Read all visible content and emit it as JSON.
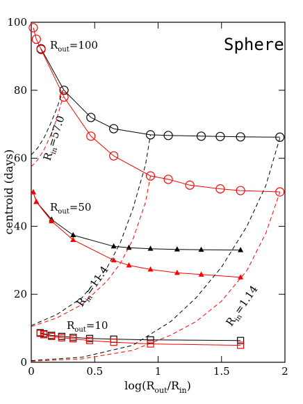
{
  "chart_data": {
    "type": "line",
    "title": "Sphere",
    "xlabel": [
      "log(R",
      "out",
      "/R",
      "in",
      ")"
    ],
    "ylabel": "centroid (days)",
    "xlim": [
      0,
      2
    ],
    "ylim": [
      0,
      100
    ],
    "xticks": [
      0,
      0.5,
      1,
      1.5,
      2
    ],
    "yticks": [
      0,
      20,
      40,
      60,
      80,
      100
    ],
    "annotations": [
      [
        "R",
        "out",
        "=100"
      ],
      [
        "R",
        "out",
        "=50"
      ],
      [
        "R",
        "out",
        "=10"
      ],
      [
        "R",
        "in",
        "=57.0"
      ],
      [
        "R",
        "in",
        "=11.4"
      ],
      [
        "R",
        "in",
        "=1.14"
      ]
    ],
    "series": [
      {
        "color": "black",
        "marker": "circle",
        "dash": false,
        "x": [
          0.077,
          0.258,
          0.47,
          0.65,
          0.94,
          1.08,
          1.34,
          1.49,
          1.65,
          1.96
        ],
        "values": [
          92.2,
          80,
          72,
          68.7,
          66.9,
          66.7,
          66.5,
          66.4,
          66.3,
          66.2
        ]
      },
      {
        "color": "red",
        "marker": "circle",
        "dash": false,
        "x": [
          0.016,
          0.04,
          0.077,
          0.258,
          0.47,
          0.65,
          0.94,
          1.08,
          1.25,
          1.49,
          1.65,
          1.96
        ],
        "values": [
          98.4,
          95,
          92,
          78,
          66.5,
          60.7,
          54.8,
          53.8,
          52.1,
          51,
          50.5,
          50.1
        ]
      },
      {
        "color": "black",
        "marker": "triangle",
        "dash": false,
        "x": [
          0.016,
          0.04,
          0.16,
          0.33,
          0.65,
          0.77,
          0.94,
          1.15,
          1.34,
          1.65
        ],
        "values": [
          50,
          47.2,
          42,
          37.4,
          34.1,
          33.7,
          33.4,
          33.2,
          33.1,
          33
        ]
      },
      {
        "color": "red",
        "marker": "triangle",
        "dash": false,
        "x": [
          0.016,
          0.04,
          0.16,
          0.33,
          0.65,
          0.77,
          0.94,
          1.15,
          1.34,
          1.65
        ],
        "values": [
          50,
          47.2,
          41.5,
          36,
          30,
          28.5,
          27.3,
          26.3,
          25.8,
          25
        ]
      },
      {
        "color": "black",
        "marker": "square",
        "dash": false,
        "x": [
          0.07,
          0.1,
          0.16,
          0.24,
          0.33,
          0.46,
          0.65,
          0.94,
          1.65
        ],
        "values": [
          8.7,
          8.4,
          7.9,
          7.6,
          7.3,
          7.0,
          6.8,
          6.6,
          6.4
        ]
      },
      {
        "color": "red",
        "marker": "square",
        "dash": false,
        "x": [
          0.07,
          0.1,
          0.16,
          0.24,
          0.33,
          0.46,
          0.65,
          0.94,
          1.65
        ],
        "values": [
          8.5,
          8.1,
          7.6,
          7.2,
          6.9,
          6.4,
          5.9,
          5.4,
          5.0
        ]
      },
      {
        "color": "black",
        "marker": "none",
        "dash": true,
        "x": [
          0,
          0.05,
          0.1,
          0.15,
          0.2,
          0.25
        ],
        "values": [
          61,
          63,
          66,
          70,
          74.5,
          80
        ]
      },
      {
        "color": "red",
        "marker": "none",
        "dash": true,
        "x": [
          0,
          0.05,
          0.1,
          0.15,
          0.2,
          0.25
        ],
        "values": [
          57.5,
          59.5,
          62.5,
          66.5,
          71.5,
          78
        ]
      },
      {
        "color": "black",
        "marker": "none",
        "dash": true,
        "x": [
          0,
          0.2,
          0.4,
          0.6,
          0.7,
          0.8,
          0.9,
          0.94
        ],
        "values": [
          10.8,
          14,
          19,
          28,
          35,
          45,
          58,
          66.9
        ]
      },
      {
        "color": "red",
        "marker": "none",
        "dash": true,
        "x": [
          0,
          0.2,
          0.4,
          0.6,
          0.7,
          0.8,
          0.9,
          0.94
        ],
        "values": [
          10.5,
          13,
          17,
          24,
          29,
          36,
          47,
          54.8
        ]
      },
      {
        "color": "black",
        "marker": "none",
        "dash": true,
        "x": [
          0,
          0.4,
          0.8,
          1.1,
          1.3,
          1.5,
          1.7,
          1.85,
          1.96
        ],
        "values": [
          0.5,
          1.5,
          5,
          12,
          19,
          28,
          40,
          52,
          66
        ]
      },
      {
        "color": "red",
        "marker": "none",
        "dash": true,
        "x": [
          0,
          0.4,
          0.8,
          1.1,
          1.3,
          1.5,
          1.7,
          1.85,
          1.96
        ],
        "values": [
          0.3,
          1,
          3.5,
          8,
          12,
          18,
          27,
          38,
          50
        ]
      }
    ]
  }
}
